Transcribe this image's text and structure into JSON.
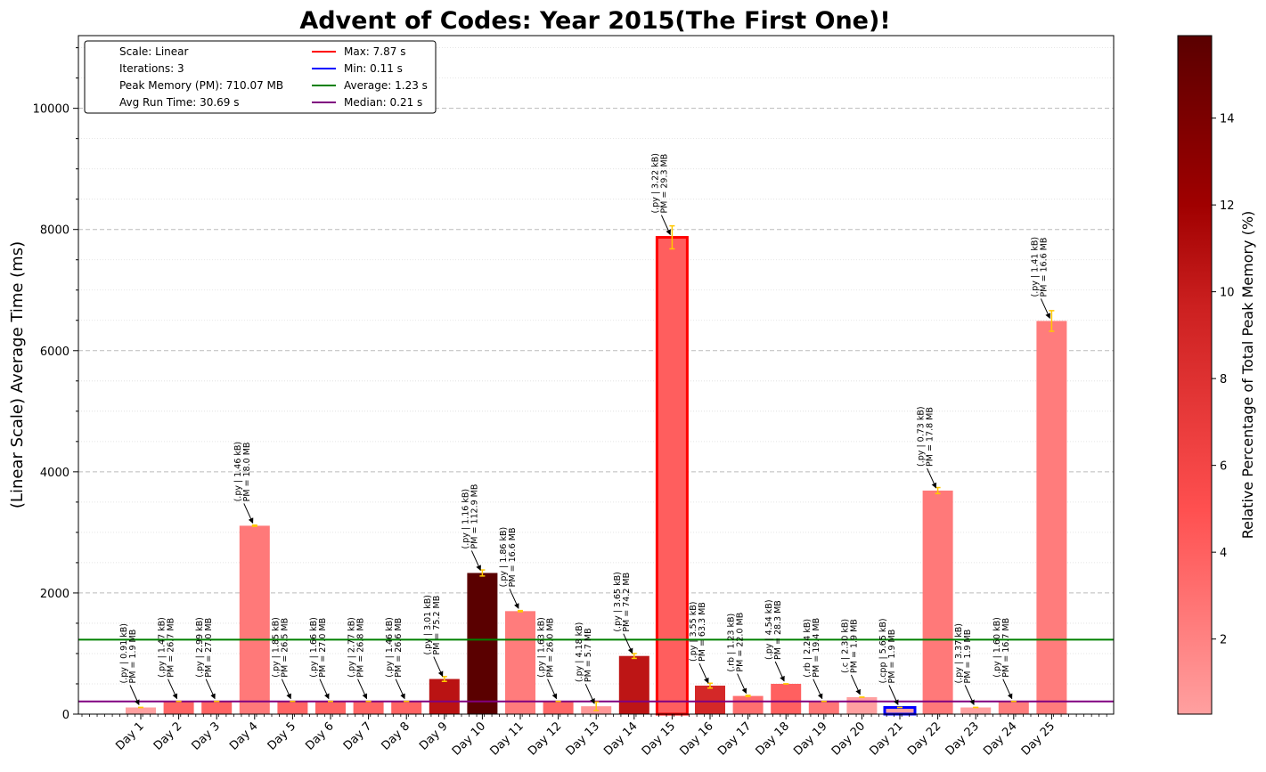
{
  "chart_data": {
    "type": "bar",
    "title": "Advent of Codes: Year 2015(The First One)!",
    "ylabel": "(Linear Scale) Average Time (ms)",
    "xlabel": "",
    "ylim": [
      0,
      11200
    ],
    "yticks": [
      0,
      2000,
      4000,
      6000,
      8000,
      10000
    ],
    "grid": true,
    "legend_position": "top-left",
    "categories": [
      "Day 1",
      "Day 2",
      "Day 3",
      "Day 4",
      "Day 5",
      "Day 6",
      "Day 7",
      "Day 8",
      "Day 9",
      "Day 10",
      "Day 11",
      "Day 12",
      "Day 13",
      "Day 14",
      "Day 15",
      "Day 16",
      "Day 17",
      "Day 18",
      "Day 19",
      "Day 20",
      "Day 21",
      "Day 22",
      "Day 23",
      "Day 24",
      "Day 25"
    ],
    "values": [
      110,
      210,
      210,
      3110,
      210,
      210,
      210,
      210,
      580,
      2330,
      1700,
      210,
      130,
      960,
      7870,
      470,
      300,
      500,
      210,
      280,
      110,
      3690,
      110,
      210,
      6490
    ],
    "errors": [
      0,
      0,
      0,
      10,
      0,
      0,
      0,
      0,
      40,
      50,
      10,
      0,
      70,
      40,
      190,
      40,
      10,
      0,
      0,
      0,
      0,
      50,
      0,
      0,
      170
    ],
    "pct_memory": [
      0.27,
      3.76,
      3.8,
      2.54,
      3.73,
      3.8,
      3.77,
      3.75,
      10.59,
      15.9,
      2.34,
      3.66,
      0.8,
      10.45,
      4.13,
      8.91,
      3.1,
      3.99,
      2.73,
      0.27,
      0.27,
      2.51,
      0.27,
      2.35,
      2.34
    ],
    "annotations": [
      {
        "line1": "(.py | 0.91 kB)",
        "line2": "PM = 1.9 MB"
      },
      {
        "line1": "(.py | 1.47 kB)",
        "line2": "PM = 26.7 MB"
      },
      {
        "line1": "(.py | 2.99 kB)",
        "line2": "PM = 27.0 MB"
      },
      {
        "line1": "(.py | 1.46 kB)",
        "line2": "PM = 18.0 MB"
      },
      {
        "line1": "(.py | 1.85 kB)",
        "line2": "PM = 26.5 MB"
      },
      {
        "line1": "(.py | 1.66 kB)",
        "line2": "PM = 27.0 MB"
      },
      {
        "line1": "(.py | 2.77 kB)",
        "line2": "PM = 26.8 MB"
      },
      {
        "line1": "(.py | 1.46 kB)",
        "line2": "PM = 26.6 MB"
      },
      {
        "line1": "(.py | 3.01 kB)",
        "line2": "PM = 75.2 MB"
      },
      {
        "line1": "(.py | 1.16 kB)",
        "line2": "PM = 112.9 MB"
      },
      {
        "line1": "(.py | 1.86 kB)",
        "line2": "PM = 16.6 MB"
      },
      {
        "line1": "(.py | 1.63 kB)",
        "line2": "PM = 26.0 MB"
      },
      {
        "line1": "(.py | 4.18 kB)",
        "line2": "PM = 5.7 MB"
      },
      {
        "line1": "(.py | 3.65 kB)",
        "line2": "PM = 74.2 MB"
      },
      {
        "line1": "(.py | 3.22 kB)",
        "line2": "PM = 29.3 MB"
      },
      {
        "line1": "(.py | 3.55 kB)",
        "line2": "PM = 63.3 MB"
      },
      {
        "line1": "(.rb | 1.23 kB)",
        "line2": "PM = 22.0 MB"
      },
      {
        "line1": "(.py | 4.54 kB)",
        "line2": "PM = 28.3 MB"
      },
      {
        "line1": "(.rb | 2.24 kB)",
        "line2": "PM = 19.4 MB"
      },
      {
        "line1": "(.c | 2.30 kB)",
        "line2": "PM = 1.9 MB"
      },
      {
        "line1": "(.cpp | 5.65 kB)",
        "line2": "PM = 1.9 MB"
      },
      {
        "line1": "(.py | 0.73 kB)",
        "line2": "PM = 17.8 MB"
      },
      {
        "line1": "(.py | 3.37 kB)",
        "line2": "PM = 1.9 MB"
      },
      {
        "line1": "(.py | 1.60 kB)",
        "line2": "PM = 16.7 MB"
      },
      {
        "line1": "(.py | 1.41 kB)",
        "line2": "PM = 16.6 MB"
      }
    ],
    "reference_lines": [
      {
        "label": "Max: 7.87 s",
        "value": null,
        "color": "#ff0000"
      },
      {
        "label": "Min: 0.11 s",
        "value": null,
        "color": "#0000ff"
      },
      {
        "label": "Average: 1.23 s",
        "value": 1230,
        "color": "#008000"
      },
      {
        "label": "Median: 0.21 s",
        "value": 210,
        "color": "#800080"
      }
    ],
    "info": [
      "Scale: Linear",
      "Iterations: 3",
      "Peak Memory (PM): 710.07 MB",
      "Avg Run Time: 30.69 s"
    ],
    "max_index": 14,
    "min_index": 20,
    "colorbar": {
      "label": "Relative Percentage of Total Peak Memory (%)",
      "range": [
        0.27,
        15.9
      ],
      "ticks": [
        2,
        4,
        6,
        8,
        10,
        12,
        14
      ]
    },
    "colors": {
      "error_bar": "#ffc800",
      "max_outline": "#ff0000",
      "min_outline": "#0000ff"
    }
  }
}
